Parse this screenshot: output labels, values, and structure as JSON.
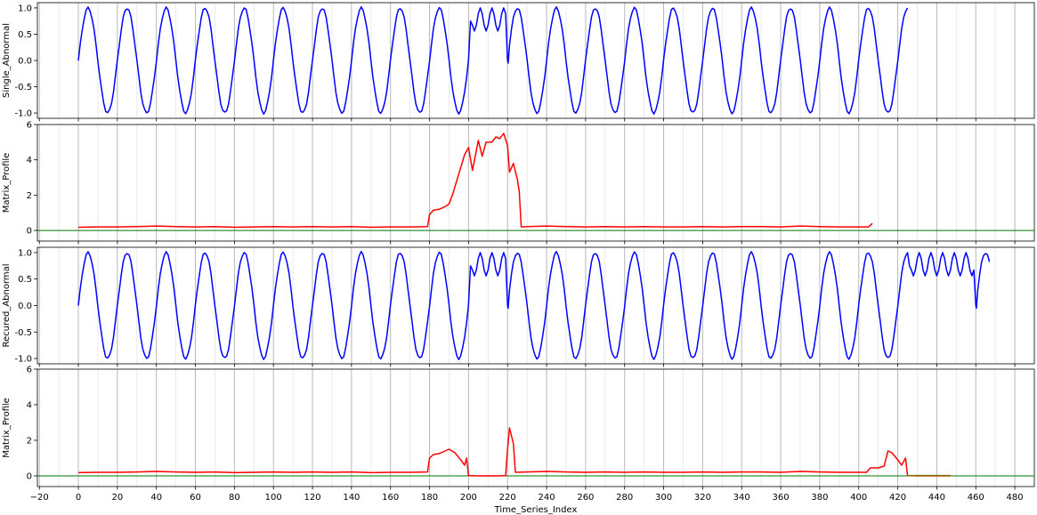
{
  "chart_data": [
    {
      "type": "line",
      "ylabel": "Single_Abnormal",
      "xlim": [
        -21,
        490
      ],
      "ylim": [
        -1.1,
        1.1
      ],
      "yticks": [
        "1.0",
        "0.5",
        "0.0",
        "-0.5",
        "-1.0"
      ],
      "ytick_values": [
        1.0,
        0.5,
        0.0,
        -0.5,
        -1.0
      ],
      "grid": "vertical",
      "series": [
        {
          "color": "#0000ff",
          "signal": {
            "kind": "sine-with-anomaly",
            "x_start": 0,
            "x_end": 425,
            "period": 20,
            "anomaly_segments": [
              [
                200,
                220
              ]
            ],
            "anomaly_period": 6,
            "anomaly_mean": 0.78,
            "anomaly_amplitude": 0.22,
            "start_drop": -0.05
          }
        }
      ]
    },
    {
      "type": "line",
      "ylabel": "Matrix_Profile",
      "xlim": [
        -21,
        490
      ],
      "ylim": [
        -0.6,
        6
      ],
      "yticks": [
        "6",
        "4",
        "2",
        "0"
      ],
      "ytick_values": [
        6,
        4,
        2,
        0
      ],
      "grid": "vertical",
      "baseline": {
        "y": 0,
        "x_start": -21,
        "x_end": 490,
        "color": "#007700"
      },
      "series": [
        {
          "color": "#ff0000",
          "points": [
            [
              0,
              0.18
            ],
            [
              10,
              0.2
            ],
            [
              20,
              0.2
            ],
            [
              30,
              0.22
            ],
            [
              40,
              0.25
            ],
            [
              50,
              0.22
            ],
            [
              60,
              0.2
            ],
            [
              70,
              0.22
            ],
            [
              80,
              0.18
            ],
            [
              90,
              0.2
            ],
            [
              100,
              0.22
            ],
            [
              110,
              0.2
            ],
            [
              120,
              0.22
            ],
            [
              130,
              0.2
            ],
            [
              140,
              0.22
            ],
            [
              150,
              0.18
            ],
            [
              160,
              0.2
            ],
            [
              170,
              0.2
            ],
            [
              179,
              0.22
            ],
            [
              180,
              0.9
            ],
            [
              182,
              1.15
            ],
            [
              185,
              1.2
            ],
            [
              188,
              1.35
            ],
            [
              190,
              1.5
            ],
            [
              192,
              2.1
            ],
            [
              195,
              3.2
            ],
            [
              198,
              4.3
            ],
            [
              200,
              4.7
            ],
            [
              202,
              3.4
            ],
            [
              205,
              5.1
            ],
            [
              207,
              4.2
            ],
            [
              209,
              5.0
            ],
            [
              212,
              5.0
            ],
            [
              214,
              5.3
            ],
            [
              216,
              5.2
            ],
            [
              218,
              5.5
            ],
            [
              220,
              4.8
            ],
            [
              221,
              3.3
            ],
            [
              223,
              3.8
            ],
            [
              225,
              2.9
            ],
            [
              226,
              2.2
            ],
            [
              227,
              0.2
            ],
            [
              230,
              0.22
            ],
            [
              240,
              0.25
            ],
            [
              250,
              0.22
            ],
            [
              260,
              0.2
            ],
            [
              270,
              0.22
            ],
            [
              280,
              0.2
            ],
            [
              290,
              0.22
            ],
            [
              300,
              0.2
            ],
            [
              310,
              0.2
            ],
            [
              320,
              0.22
            ],
            [
              330,
              0.2
            ],
            [
              340,
              0.22
            ],
            [
              350,
              0.22
            ],
            [
              360,
              0.2
            ],
            [
              370,
              0.25
            ],
            [
              380,
              0.22
            ],
            [
              390,
              0.2
            ],
            [
              400,
              0.2
            ],
            [
              405,
              0.2
            ],
            [
              407,
              0.4
            ]
          ]
        }
      ]
    },
    {
      "type": "line",
      "ylabel": "Recured_Abnormal",
      "xlim": [
        -21,
        490
      ],
      "ylim": [
        -1.1,
        1.1
      ],
      "yticks": [
        "1.0",
        "0.5",
        "0.0",
        "-0.5",
        "-1.0"
      ],
      "ytick_values": [
        1.0,
        0.5,
        0.0,
        -0.5,
        -1.0
      ],
      "grid": "vertical",
      "series": [
        {
          "color": "#0000ff",
          "signal": {
            "kind": "sine-with-anomaly",
            "x_start": 0,
            "x_end": 467,
            "period": 20,
            "anomaly_segments": [
              [
                200,
                220
              ],
              [
                425,
                460
              ]
            ],
            "anomaly_period": 6,
            "anomaly_mean": 0.78,
            "anomaly_amplitude": 0.22,
            "start_drop": -0.05
          }
        }
      ]
    },
    {
      "type": "line",
      "ylabel": "Matrix_Profile",
      "xlabel": "Time_Series_Index",
      "xlim": [
        -21,
        490
      ],
      "ylim": [
        -0.6,
        6
      ],
      "yticks": [
        "6",
        "4",
        "2",
        "0"
      ],
      "ytick_values": [
        6,
        4,
        2,
        0
      ],
      "xticks": [
        "−20",
        "0",
        "20",
        "40",
        "60",
        "80",
        "100",
        "120",
        "140",
        "160",
        "180",
        "200",
        "220",
        "240",
        "260",
        "280",
        "300",
        "320",
        "340",
        "360",
        "380",
        "400",
        "420",
        "440",
        "460",
        "480"
      ],
      "xtick_values": [
        -20,
        0,
        20,
        40,
        60,
        80,
        100,
        120,
        140,
        160,
        180,
        200,
        220,
        240,
        260,
        280,
        300,
        320,
        340,
        360,
        380,
        400,
        420,
        440,
        460,
        480
      ],
      "grid": "vertical",
      "baseline": {
        "y": 0,
        "x_start": -21,
        "x_end": 490,
        "color": "#007700"
      },
      "series": [
        {
          "color": "#ff0000",
          "points": [
            [
              0,
              0.18
            ],
            [
              10,
              0.2
            ],
            [
              20,
              0.2
            ],
            [
              30,
              0.22
            ],
            [
              40,
              0.25
            ],
            [
              50,
              0.22
            ],
            [
              60,
              0.2
            ],
            [
              70,
              0.22
            ],
            [
              80,
              0.18
            ],
            [
              90,
              0.2
            ],
            [
              100,
              0.22
            ],
            [
              110,
              0.2
            ],
            [
              120,
              0.22
            ],
            [
              130,
              0.2
            ],
            [
              140,
              0.22
            ],
            [
              150,
              0.18
            ],
            [
              160,
              0.2
            ],
            [
              170,
              0.2
            ],
            [
              179,
              0.22
            ],
            [
              180,
              1.0
            ],
            [
              182,
              1.2
            ],
            [
              185,
              1.25
            ],
            [
              188,
              1.4
            ],
            [
              190,
              1.5
            ],
            [
              193,
              1.3
            ],
            [
              196,
              0.9
            ],
            [
              198,
              0.6
            ],
            [
              199,
              1.0
            ],
            [
              200,
              0.02
            ],
            [
              205,
              0.0
            ],
            [
              210,
              0.0
            ],
            [
              215,
              0.0
            ],
            [
              219,
              0.02
            ],
            [
              220,
              1.5
            ],
            [
              221,
              2.7
            ],
            [
              223,
              1.8
            ],
            [
              224,
              0.2
            ],
            [
              230,
              0.22
            ],
            [
              240,
              0.25
            ],
            [
              250,
              0.22
            ],
            [
              260,
              0.2
            ],
            [
              270,
              0.22
            ],
            [
              280,
              0.2
            ],
            [
              290,
              0.22
            ],
            [
              300,
              0.2
            ],
            [
              310,
              0.2
            ],
            [
              320,
              0.22
            ],
            [
              330,
              0.2
            ],
            [
              340,
              0.22
            ],
            [
              350,
              0.22
            ],
            [
              360,
              0.2
            ],
            [
              370,
              0.25
            ],
            [
              380,
              0.22
            ],
            [
              390,
              0.2
            ],
            [
              400,
              0.2
            ],
            [
              404,
              0.2
            ],
            [
              406,
              0.45
            ],
            [
              410,
              0.45
            ],
            [
              413,
              0.55
            ],
            [
              415,
              1.4
            ],
            [
              417,
              1.3
            ],
            [
              420,
              0.9
            ],
            [
              422,
              0.6
            ],
            [
              424,
              1.0
            ],
            [
              425,
              0.02
            ],
            [
              430,
              0.0
            ],
            [
              440,
              0.0
            ],
            [
              447,
              0.0
            ]
          ]
        },
        {
          "color": "#7a7a00",
          "points": [
            [
              425,
              0.02
            ],
            [
              447,
              0.02
            ]
          ]
        }
      ]
    }
  ]
}
